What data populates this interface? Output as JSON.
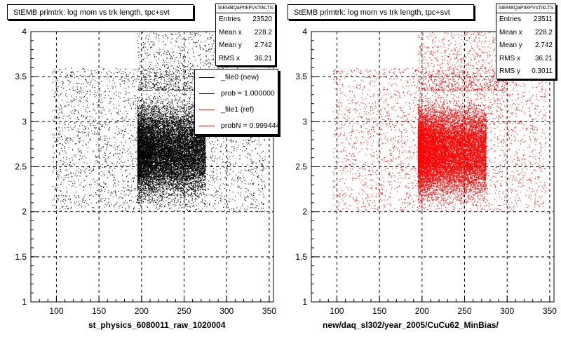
{
  "chart_data": [
    {
      "type": "scatter",
      "title": "StEMB primtrk: log mom vs trk length, tpc+svt",
      "xlabel": "st_physics_6080011_raw_1020004",
      "ylabel": "",
      "xlim": [
        70,
        355
      ],
      "ylim": [
        1,
        4
      ],
      "xticks": [
        "100",
        "150",
        "200",
        "250",
        "300",
        "350"
      ],
      "yticks": [
        "1",
        "1.5",
        "2",
        "2.5",
        "3",
        "3.5",
        "4"
      ],
      "grid": true,
      "marker_color": "#000000",
      "stats": {
        "header": "StEMBQaPtrkPVsTrkLTS",
        "rows": [
          {
            "label": "Entries",
            "value": "23520"
          },
          {
            "label": "Mean x",
            "value": "228.2"
          },
          {
            "label": "Mean y",
            "value": "2.742"
          },
          {
            "label": "RMS x",
            "value": "36.21"
          }
        ]
      },
      "legend": {
        "placement": "right",
        "entries": [
          {
            "label": "_file0 (new)",
            "color": "#000000"
          },
          {
            "label": "prob = 1.000000",
            "color": "#000000"
          },
          {
            "label": "_file1 (ref)",
            "color": "#ff0000"
          },
          {
            "label": "probN = 0.999444",
            "color": "#ff0000"
          }
        ]
      },
      "distribution": {
        "dense_core": {
          "x_range": [
            195,
            275
          ],
          "y_range": [
            2.0,
            3.35
          ]
        },
        "sparse_spread": {
          "x_range": [
            95,
            345
          ],
          "y_range": [
            2.0,
            3.6
          ]
        },
        "sparse_high": {
          "x_range": [
            195,
            300
          ],
          "y_range": [
            3.35,
            4.0
          ]
        }
      }
    },
    {
      "type": "scatter",
      "title": "StEMB primtrk: log mom vs trk length, tpc+svt",
      "xlabel": "new/daq_sl302/year_2005/CuCu62_MinBias/",
      "ylabel": "",
      "xlim": [
        70,
        355
      ],
      "ylim": [
        1,
        4
      ],
      "xticks": [
        "100",
        "150",
        "200",
        "250",
        "300",
        "350"
      ],
      "yticks": [
        "1",
        "1.5",
        "2",
        "2.5",
        "3",
        "3.5",
        "4"
      ],
      "grid": true,
      "marker_color": "#ff0000",
      "stats": {
        "header": "StEMBQaPtrkPVsTrkLTS",
        "rows": [
          {
            "label": "Entries",
            "value": "23511"
          },
          {
            "label": "Mean x",
            "value": "228.2"
          },
          {
            "label": "Mean y",
            "value": "2.742"
          },
          {
            "label": "RMS x",
            "value": "36.21"
          },
          {
            "label": "RMS y",
            "value": "0.3011"
          }
        ]
      },
      "distribution": {
        "dense_core": {
          "x_range": [
            195,
            275
          ],
          "y_range": [
            2.0,
            3.35
          ]
        },
        "sparse_spread": {
          "x_range": [
            95,
            345
          ],
          "y_range": [
            2.0,
            3.6
          ]
        },
        "sparse_high": {
          "x_range": [
            195,
            300
          ],
          "y_range": [
            3.35,
            4.0
          ]
        }
      }
    }
  ]
}
